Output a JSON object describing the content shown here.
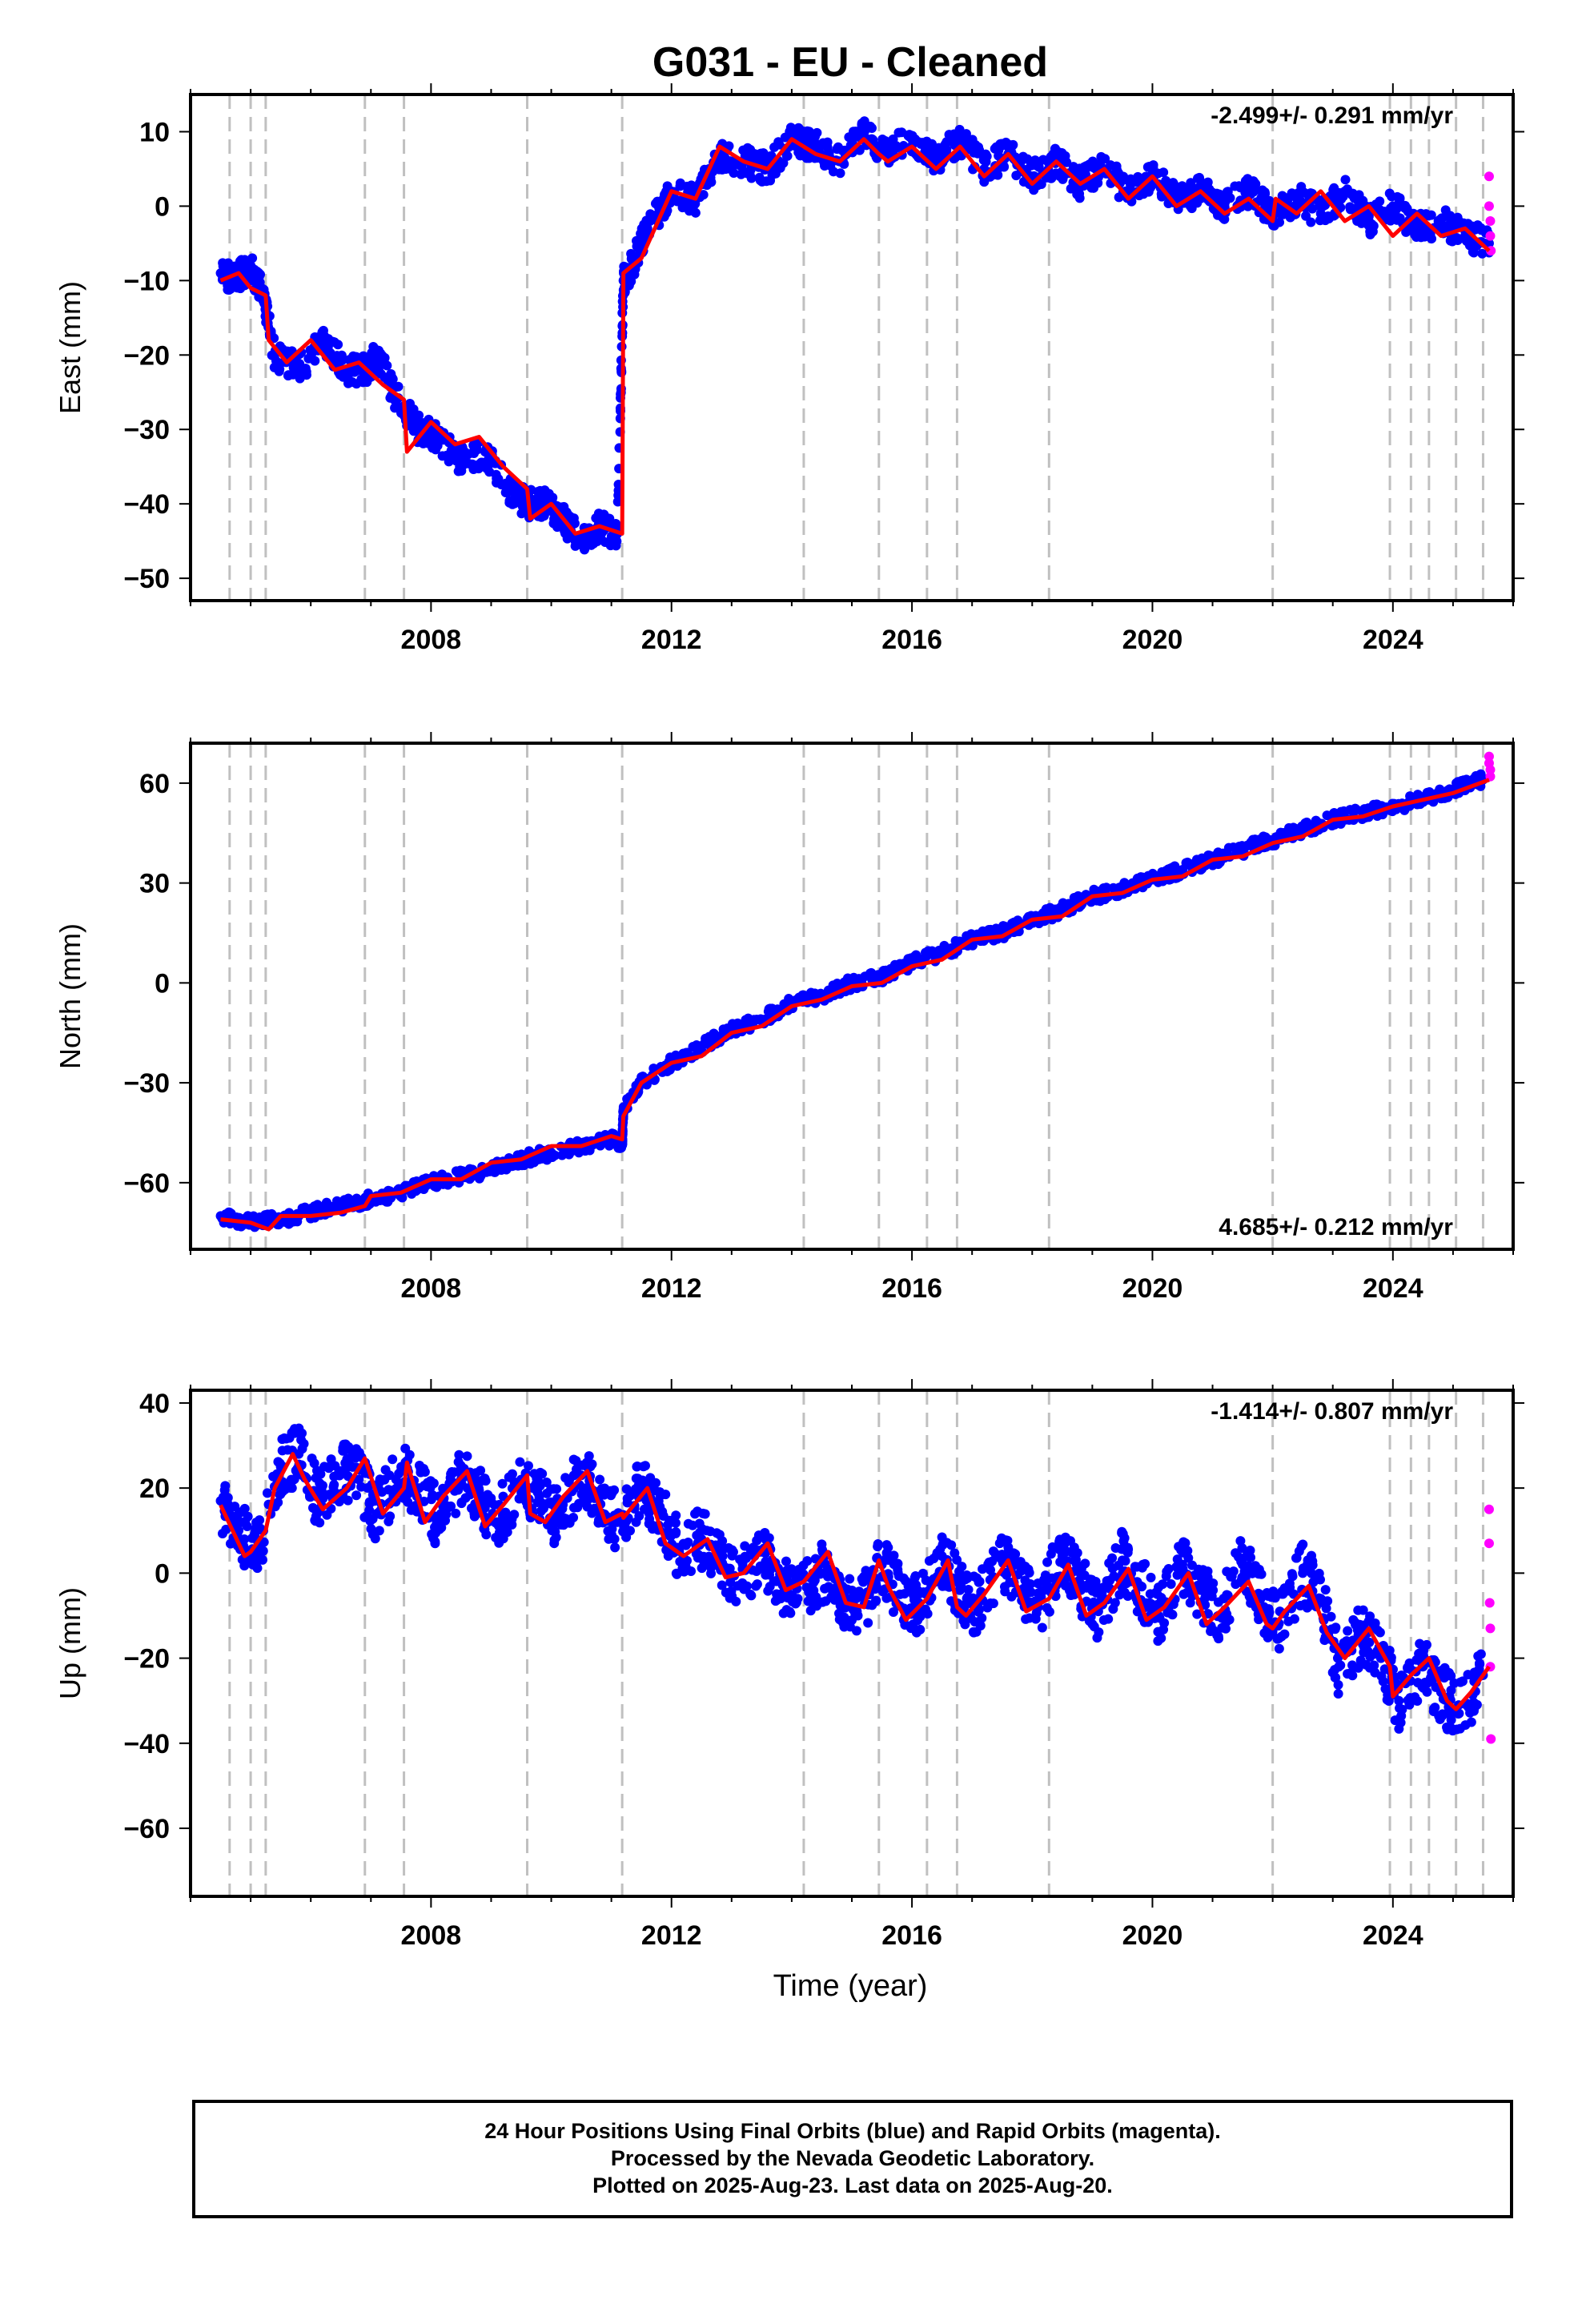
{
  "title": "G031  - EU - Cleaned",
  "xlabel": "Time (year)",
  "caption": [
    "24 Hour Positions Using Final Orbits (blue) and Rapid Orbits (magenta).",
    "Processed by the Nevada Geodetic Laboratory.",
    "Plotted on 2025-Aug-23. Last data on 2025-Aug-20."
  ],
  "colors": {
    "final_orbits": "#0000ff",
    "rapid_orbits": "#ff00ff",
    "model": "#ff0000",
    "event_lines": "#c0c0c0"
  },
  "chart_data": [
    {
      "type": "scatter",
      "component": "east",
      "ylabel": "East (mm)",
      "rate": "-2.499+/- 0.291 mm/yr",
      "rate_position": "top-right",
      "xlim": [
        2004.0,
        2026.0
      ],
      "ylim": [
        -53,
        15
      ],
      "xticks": [
        2008,
        2012,
        2016,
        2020,
        2024
      ],
      "yticks": [
        10,
        0,
        -10,
        -20,
        -30,
        -40,
        -50
      ],
      "event_lines": [
        2004.65,
        2005.0,
        2005.25,
        2006.9,
        2007.55,
        2009.6,
        2011.18,
        2014.2,
        2015.45,
        2016.25,
        2016.75,
        2018.28,
        2022.0,
        2023.95,
        2024.3,
        2024.6,
        2025.05,
        2025.5
      ],
      "series": [
        {
          "name": "Final Orbits",
          "style": "points",
          "x": [
            2004.5,
            2004.7,
            2005.0,
            2005.2,
            2005.4,
            2005.8,
            2006.2,
            2006.6,
            2006.9,
            2007.1,
            2007.5,
            2007.8,
            2008.1,
            2008.5,
            2008.9,
            2009.3,
            2009.6,
            2009.9,
            2010.2,
            2010.5,
            2010.8,
            2011.1,
            2011.2,
            2011.35,
            2011.6,
            2012.0,
            2012.4,
            2012.8,
            2013.2,
            2013.6,
            2014.0,
            2014.4,
            2014.8,
            2015.2,
            2015.6,
            2016.0,
            2016.4,
            2016.8,
            2017.2,
            2017.6,
            2018.0,
            2018.4,
            2018.8,
            2019.2,
            2019.6,
            2020.0,
            2020.4,
            2020.8,
            2021.2,
            2021.6,
            2022.0,
            2022.4,
            2022.8,
            2023.2,
            2023.6,
            2024.0,
            2024.4,
            2024.8,
            2025.2,
            2025.6
          ],
          "y": [
            -9,
            -10,
            -8,
            -12,
            -20,
            -22,
            -18,
            -22,
            -22,
            -20,
            -27,
            -30,
            -31,
            -34,
            -33,
            -38,
            -40,
            -40,
            -42,
            -45,
            -43,
            -44,
            -10,
            -8,
            -3,
            2,
            1,
            7,
            6,
            5,
            9,
            8,
            6,
            10,
            7,
            9,
            6,
            9,
            5,
            7,
            4,
            6,
            3,
            5,
            2,
            4,
            1,
            2,
            0,
            2,
            -1,
            1,
            -1,
            2,
            -2,
            0,
            -3,
            -2,
            -4,
            -5
          ]
        },
        {
          "name": "Rapid Orbits",
          "style": "points",
          "x": [
            2025.6,
            2025.6,
            2025.62,
            2025.62,
            2025.63
          ],
          "y": [
            4,
            0,
            -2,
            -4,
            -6
          ]
        },
        {
          "name": "Model",
          "style": "line",
          "x": [
            2004.5,
            2004.8,
            2005.0,
            2005.25,
            2005.3,
            2005.6,
            2006.0,
            2006.4,
            2006.8,
            2007.2,
            2007.55,
            2007.6,
            2008.0,
            2008.4,
            2008.8,
            2009.2,
            2009.6,
            2009.65,
            2010.0,
            2010.4,
            2010.8,
            2011.18,
            2011.2,
            2011.5,
            2012.0,
            2012.4,
            2012.8,
            2013.2,
            2013.6,
            2014.0,
            2014.4,
            2014.8,
            2015.2,
            2015.45,
            2015.6,
            2016.0,
            2016.4,
            2016.8,
            2017.2,
            2017.6,
            2018.0,
            2018.4,
            2018.8,
            2019.2,
            2019.6,
            2020.0,
            2020.4,
            2020.8,
            2021.2,
            2021.6,
            2022.0,
            2022.05,
            2022.4,
            2022.8,
            2023.2,
            2023.6,
            2024.0,
            2024.4,
            2024.8,
            2025.2,
            2025.6
          ],
          "y": [
            -10,
            -9,
            -11,
            -12,
            -18,
            -21,
            -18,
            -22,
            -21,
            -24,
            -26,
            -33,
            -29,
            -32,
            -31,
            -35,
            -38,
            -42,
            -40,
            -44,
            -43,
            -44,
            -9,
            -7,
            2,
            1,
            8,
            6,
            5,
            9,
            7,
            6,
            9,
            7,
            6,
            8,
            5,
            8,
            4,
            7,
            3,
            6,
            3,
            5,
            1,
            4,
            0,
            2,
            -1,
            1,
            -2,
            1,
            -1,
            2,
            -2,
            0,
            -4,
            -1,
            -4,
            -3,
            -6
          ]
        }
      ]
    },
    {
      "type": "scatter",
      "component": "north",
      "ylabel": "North (mm)",
      "rate": "4.685+/- 0.212 mm/yr",
      "rate_position": "bottom-right",
      "xlim": [
        2004.0,
        2026.0
      ],
      "ylim": [
        -80,
        72
      ],
      "xticks": [
        2008,
        2012,
        2016,
        2020,
        2024
      ],
      "yticks": [
        60,
        30,
        0,
        -30,
        -60
      ],
      "event_lines": [
        2004.65,
        2005.0,
        2005.25,
        2006.9,
        2007.55,
        2009.6,
        2011.18,
        2014.2,
        2015.45,
        2016.25,
        2016.75,
        2018.28,
        2022.0,
        2023.95,
        2024.3,
        2024.6,
        2025.05,
        2025.5
      ],
      "series": [
        {
          "name": "Final Orbits",
          "style": "points",
          "x": [
            2004.5,
            2005.0,
            2005.5,
            2006.0,
            2006.5,
            2007.0,
            2007.5,
            2008.0,
            2008.5,
            2009.0,
            2009.5,
            2010.0,
            2010.5,
            2011.0,
            2011.18,
            2011.2,
            2011.5,
            2012.0,
            2012.5,
            2013.0,
            2013.5,
            2014.0,
            2014.5,
            2015.0,
            2015.5,
            2016.0,
            2016.5,
            2017.0,
            2017.5,
            2018.0,
            2018.5,
            2019.0,
            2019.5,
            2020.0,
            2020.5,
            2021.0,
            2021.5,
            2022.0,
            2022.5,
            2023.0,
            2023.5,
            2024.0,
            2024.5,
            2025.0,
            2025.5
          ],
          "y": [
            -70,
            -72,
            -71,
            -69,
            -67,
            -65,
            -63,
            -60,
            -58,
            -56,
            -53,
            -51,
            -49,
            -47,
            -48,
            -38,
            -30,
            -24,
            -19,
            -14,
            -11,
            -6,
            -4,
            0,
            2,
            6,
            9,
            13,
            15,
            19,
            22,
            26,
            28,
            31,
            34,
            37,
            40,
            43,
            46,
            49,
            51,
            53,
            55,
            58,
            61
          ]
        },
        {
          "name": "Rapid Orbits",
          "style": "points",
          "x": [
            2025.6,
            2025.6,
            2025.62,
            2025.62
          ],
          "y": [
            68,
            66,
            64,
            62
          ]
        },
        {
          "name": "Model",
          "style": "line",
          "x": [
            2004.5,
            2005.0,
            2005.3,
            2005.5,
            2006.0,
            2006.5,
            2006.9,
            2007.0,
            2007.5,
            2008.0,
            2008.5,
            2009.0,
            2009.5,
            2010.0,
            2010.5,
            2011.0,
            2011.18,
            2011.2,
            2011.5,
            2012.0,
            2012.5,
            2013.0,
            2013.5,
            2014.0,
            2014.5,
            2015.0,
            2015.5,
            2016.0,
            2016.5,
            2017.0,
            2017.5,
            2018.0,
            2018.5,
            2019.0,
            2019.5,
            2020.0,
            2020.5,
            2021.0,
            2021.5,
            2022.0,
            2022.5,
            2023.0,
            2023.5,
            2024.0,
            2024.5,
            2025.0,
            2025.6
          ],
          "y": [
            -71,
            -72,
            -74,
            -70,
            -70,
            -69,
            -67,
            -64,
            -63,
            -59,
            -59,
            -54,
            -53,
            -49,
            -49,
            -46,
            -47,
            -40,
            -30,
            -24,
            -22,
            -15,
            -13,
            -7,
            -5,
            -1,
            0,
            5,
            7,
            13,
            14,
            19,
            20,
            26,
            27,
            31,
            32,
            37,
            38,
            42,
            44,
            49,
            50,
            53,
            55,
            57,
            61
          ]
        }
      ]
    },
    {
      "type": "scatter",
      "component": "up",
      "ylabel": "Up (mm)",
      "rate": "-1.414+/- 0.807 mm/yr",
      "rate_position": "top-right",
      "xlim": [
        2004.0,
        2026.0
      ],
      "ylim": [
        -76,
        43
      ],
      "xticks": [
        2008,
        2012,
        2016,
        2020,
        2024
      ],
      "yticks": [
        40,
        20,
        0,
        -20,
        -40,
        -60
      ],
      "event_lines": [
        2004.65,
        2005.0,
        2005.25,
        2006.9,
        2007.55,
        2009.6,
        2011.18,
        2014.2,
        2015.45,
        2016.25,
        2016.75,
        2018.28,
        2022.0,
        2023.95,
        2024.3,
        2024.6,
        2025.05,
        2025.5
      ],
      "series": [
        {
          "name": "Final Orbits",
          "style": "points",
          "x": [
            2004.5,
            2004.8,
            2005.1,
            2005.5,
            2005.8,
            2006.1,
            2006.5,
            2006.8,
            2007.1,
            2007.5,
            2007.8,
            2008.1,
            2008.5,
            2008.8,
            2009.1,
            2009.5,
            2009.8,
            2010.1,
            2010.5,
            2010.8,
            2011.1,
            2011.5,
            2011.8,
            2012.1,
            2012.5,
            2012.8,
            2013.1,
            2013.5,
            2013.8,
            2014.1,
            2014.5,
            2014.8,
            2015.1,
            2015.5,
            2015.8,
            2016.1,
            2016.5,
            2016.8,
            2017.1,
            2017.5,
            2017.8,
            2018.1,
            2018.5,
            2018.8,
            2019.1,
            2019.5,
            2019.8,
            2020.1,
            2020.5,
            2020.8,
            2021.1,
            2021.5,
            2021.8,
            2022.1,
            2022.5,
            2022.8,
            2023.1,
            2023.5,
            2023.8,
            2024.1,
            2024.5,
            2024.8,
            2025.1,
            2025.5
          ],
          "y": [
            17,
            10,
            5,
            25,
            28,
            18,
            24,
            22,
            14,
            24,
            20,
            13,
            22,
            18,
            12,
            22,
            18,
            13,
            23,
            18,
            12,
            20,
            15,
            6,
            8,
            4,
            -3,
            5,
            -2,
            -6,
            0,
            -6,
            -10,
            2,
            -5,
            -8,
            4,
            -4,
            -8,
            3,
            -4,
            -8,
            4,
            -3,
            -9,
            3,
            -3,
            -10,
            2,
            -4,
            -10,
            2,
            -6,
            -12,
            0,
            -6,
            -22,
            -14,
            -20,
            -30,
            -22,
            -28,
            -33,
            -24
          ]
        },
        {
          "name": "Rapid Orbits",
          "style": "points",
          "x": [
            2025.6,
            2025.6,
            2025.61,
            2025.62,
            2025.62,
            2025.63
          ],
          "y": [
            15,
            7,
            -7,
            -13,
            -22,
            -39
          ]
        },
        {
          "name": "Model",
          "style": "line",
          "x": [
            2004.5,
            2004.7,
            2004.9,
            2005.0,
            2005.2,
            2005.25,
            2005.4,
            2005.7,
            2005.9,
            2006.2,
            2006.6,
            2006.9,
            2007.2,
            2007.55,
            2007.6,
            2007.9,
            2008.2,
            2008.6,
            2008.9,
            2009.2,
            2009.6,
            2009.65,
            2009.9,
            2010.2,
            2010.6,
            2010.9,
            2011.18,
            2011.2,
            2011.6,
            2011.9,
            2012.2,
            2012.6,
            2012.9,
            2013.2,
            2013.6,
            2013.9,
            2014.2,
            2014.6,
            2014.9,
            2015.2,
            2015.45,
            2015.6,
            2015.9,
            2016.25,
            2016.6,
            2016.75,
            2016.9,
            2017.2,
            2017.6,
            2017.9,
            2018.28,
            2018.6,
            2018.9,
            2019.2,
            2019.6,
            2019.9,
            2020.2,
            2020.6,
            2020.9,
            2021.2,
            2021.6,
            2021.9,
            2022.0,
            2022.2,
            2022.6,
            2022.9,
            2023.2,
            2023.6,
            2023.95,
            2024.0,
            2024.3,
            2024.6,
            2024.9,
            2025.05,
            2025.3,
            2025.6
          ],
          "y": [
            16,
            10,
            4,
            5,
            9,
            10,
            20,
            28,
            22,
            15,
            20,
            27,
            14,
            20,
            26,
            12,
            18,
            24,
            11,
            16,
            23,
            14,
            12,
            18,
            24,
            12,
            14,
            13,
            20,
            7,
            4,
            8,
            -1,
            0,
            7,
            -4,
            -2,
            5,
            -7,
            -8,
            3,
            -3,
            -11,
            -6,
            3,
            -8,
            -10,
            -5,
            3,
            -9,
            -6,
            2,
            -10,
            -7,
            1,
            -11,
            -8,
            0,
            -12,
            -8,
            -2,
            -12,
            -13,
            -9,
            -3,
            -14,
            -20,
            -13,
            -22,
            -29,
            -24,
            -20,
            -30,
            -32,
            -28,
            -22
          ]
        }
      ]
    }
  ]
}
